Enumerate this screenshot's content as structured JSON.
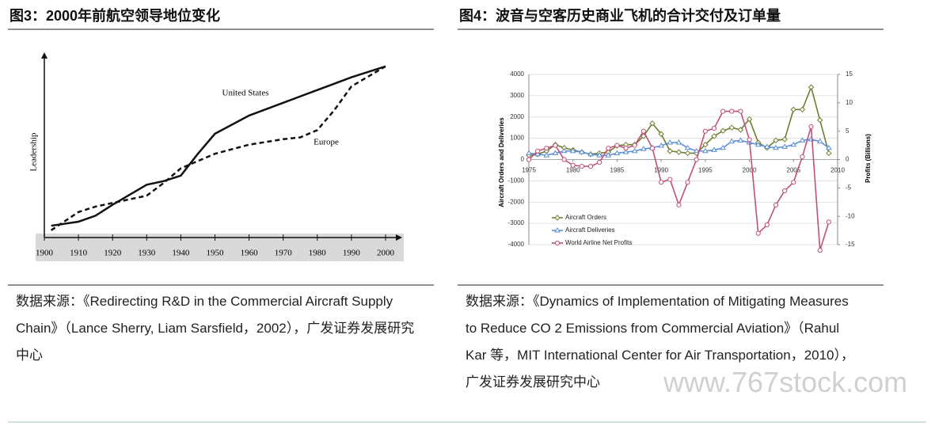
{
  "chart_data": [
    {
      "type": "line",
      "title": "图3：2000年前航空领导地位变化",
      "source": "数据来源：《Redirecting R&D in the Commercial Aircraft Supply Chain》（Lance Sherry, Liam Sarsfield，2002），广发证券发展研究中心",
      "y_label": "Leadership",
      "x": [
        1902,
        1910,
        1915,
        1920,
        1930,
        1935,
        1940,
        1945,
        1950,
        1960,
        1970,
        1975,
        1980,
        1985,
        1990,
        2000
      ],
      "series": [
        {
          "name": "United States",
          "color": "#111111",
          "dash": false,
          "values": [
            6.5,
            8.7,
            12,
            18,
            29,
            31,
            34,
            46,
            57,
            67,
            74,
            77.5,
            81,
            84.5,
            88,
            94
          ]
        },
        {
          "name": "Europe",
          "color": "#111111",
          "dash": true,
          "values": [
            4,
            14,
            17,
            19,
            23,
            30,
            38,
            42,
            46,
            51,
            54,
            55,
            59,
            70,
            83,
            94
          ]
        }
      ],
      "xlim": [
        1900,
        2000
      ],
      "xticks": [
        1900,
        1910,
        1920,
        1930,
        1940,
        1950,
        1960,
        1970,
        1980,
        1990,
        2000
      ],
      "ylim": [
        0,
        100
      ]
    },
    {
      "type": "line",
      "title": "图4：波音与空客历史商业飞机的合计交付及订单量",
      "source": "数据来源：《Dynamics of Implementation of Mitigating Measures to Reduce CO 2 Emissions from Commercial Aviation》（Rahul Kar 等，MIT International Center for Air Transportation，2010），广发证券发展研究中心",
      "y_label": "Aircraft Orders and Deliveries",
      "y2_label": "Profits (Billions)",
      "x": [
        1975,
        1976,
        1977,
        1978,
        1979,
        1980,
        1981,
        1982,
        1983,
        1984,
        1985,
        1986,
        1987,
        1988,
        1989,
        1990,
        1991,
        1992,
        1993,
        1994,
        1995,
        1996,
        1997,
        1998,
        1999,
        2000,
        2001,
        2002,
        2003,
        2004,
        2005,
        2006,
        2007,
        2008,
        2009
      ],
      "series": [
        {
          "name": "Aircraft Orders",
          "color": "#6f7d32",
          "marker": "diamond",
          "values": [
            200,
            250,
            400,
            700,
            550,
            450,
            350,
            250,
            300,
            350,
            650,
            700,
            700,
            1100,
            1700,
            1200,
            400,
            350,
            300,
            300,
            700,
            1100,
            1350,
            1500,
            1400,
            1900,
            800,
            550,
            900,
            950,
            2350,
            2350,
            3400,
            1850,
            300
          ]
        },
        {
          "name": "Aircraft Deliveries",
          "color": "#5b8fd6",
          "marker": "triangle",
          "values": [
            300,
            250,
            200,
            300,
            400,
            400,
            350,
            250,
            200,
            200,
            300,
            350,
            400,
            500,
            550,
            650,
            800,
            800,
            550,
            400,
            400,
            450,
            550,
            850,
            900,
            800,
            700,
            600,
            550,
            600,
            700,
            900,
            950,
            850,
            550
          ]
        },
        {
          "name": "World Airline Net Profits",
          "color": "#c0507a",
          "marker": "circle",
          "axis": "y2",
          "values": [
            0,
            1.5,
            2,
            2.5,
            0,
            -1,
            -1.2,
            -1.2,
            -0.5,
            2,
            2.5,
            2,
            2.5,
            5,
            2,
            -4,
            -3.5,
            -8,
            -4,
            0,
            5,
            5.5,
            8.5,
            8.5,
            8.5,
            3.5,
            -13,
            -11.5,
            -8,
            -5.5,
            -4,
            0.5,
            5.8,
            -16,
            -11
          ]
        }
      ],
      "xlim": [
        1975,
        2010
      ],
      "xticks": [
        1975,
        1980,
        1985,
        1990,
        1995,
        2000,
        2005,
        2010
      ],
      "ylim": [
        -4000,
        4000
      ],
      "yticks": [
        -4000,
        -3000,
        -2000,
        -1000,
        0,
        1000,
        2000,
        3000,
        4000
      ],
      "y2lim": [
        -15,
        15
      ],
      "y2ticks": [
        -15,
        -10,
        -5,
        0,
        5,
        10,
        15
      ],
      "grid": true
    }
  ],
  "watermark": "www.767stock.com"
}
